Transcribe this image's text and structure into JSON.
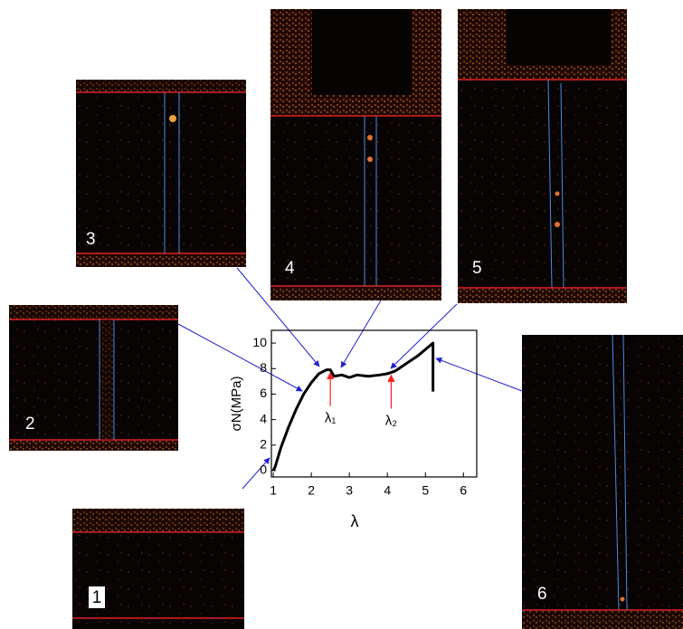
{
  "chart_data": {
    "type": "line",
    "xlabel": "λ",
    "ylabel": "σN(MPa)",
    "x": [
      1,
      1.05,
      1.1,
      1.2,
      1.3,
      1.4,
      1.6,
      1.8,
      2.0,
      2.2,
      2.4,
      2.5,
      2.6,
      2.8,
      3.0,
      3.2,
      3.5,
      3.8,
      4.0,
      4.2,
      4.5,
      4.8,
      5.0,
      5.2,
      5.2
    ],
    "values": [
      0,
      0.3,
      0.8,
      1.8,
      2.6,
      3.4,
      4.8,
      6.0,
      6.9,
      7.6,
      7.9,
      7.9,
      7.4,
      7.5,
      7.3,
      7.5,
      7.4,
      7.5,
      7.6,
      7.8,
      8.4,
      9.0,
      9.5,
      10.0,
      6.2
    ],
    "color": "#000000",
    "xlim": [
      0.95,
      6.35
    ],
    "ylim": [
      -0.5,
      11
    ],
    "xticks": [
      1,
      2,
      3,
      4,
      5,
      6
    ],
    "yticks": [
      0,
      2,
      4,
      6,
      8,
      10
    ],
    "annotations": [
      {
        "text": "λ₁",
        "x": 2.5,
        "y": 7.9
      },
      {
        "text": "λ₂",
        "x": 4.1,
        "y": 7.7
      }
    ],
    "annotation_color": "#ff2020"
  },
  "panels": [
    {
      "label": "1"
    },
    {
      "label": "2"
    },
    {
      "label": "3"
    },
    {
      "label": "4"
    },
    {
      "label": "5"
    },
    {
      "label": "6"
    }
  ]
}
